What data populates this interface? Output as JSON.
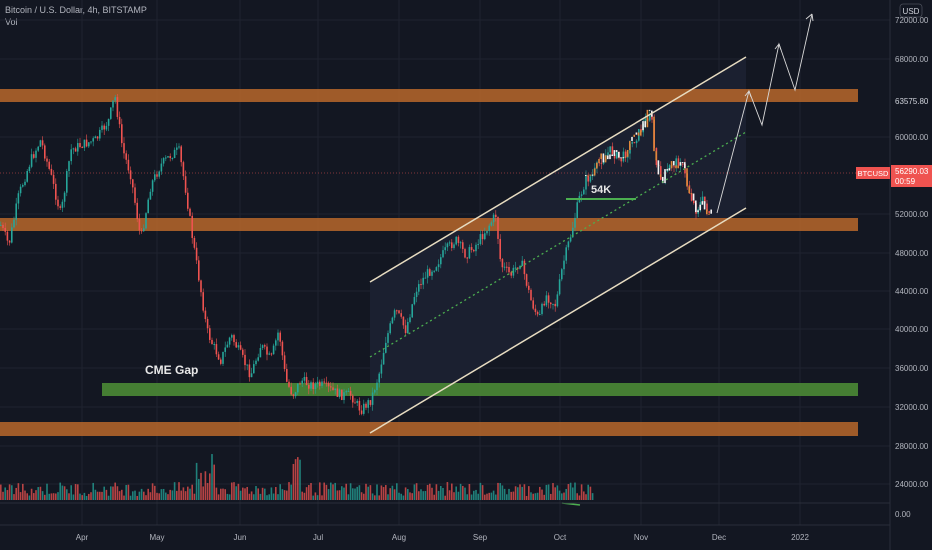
{
  "header": {
    "symbol_line": "Bitcoin / U.S. Dollar, 4h, BITSTAMP",
    "indicator": "Vol"
  },
  "currency_label": "USD",
  "colors": {
    "background": "#131722",
    "zone": "#b8672a",
    "cme_gap": "#4b8a35",
    "channel": "#e7dcc1",
    "midline": "#4caf50",
    "candle_up": "#26a69a",
    "candle_down": "#ef5350",
    "price_badge": "#ef5350"
  },
  "price_axis": {
    "ticks": [
      "72000.00",
      "68000.00",
      "63575.80",
      "60000.00",
      "56290.03",
      "52000.00",
      "48000.00",
      "44000.00",
      "40000.00",
      "36000.00",
      "32000.00",
      "28000.00",
      "24000.00",
      "0.00"
    ],
    "highlight": "63575.80"
  },
  "current_price": {
    "ticker": "BTCUSD",
    "price": "56290.03",
    "countdown": "00:59"
  },
  "time_axis": {
    "labels": [
      "Apr",
      "May",
      "Jun",
      "Jul",
      "Aug",
      "Sep",
      "Oct",
      "Nov",
      "Dec",
      "2022"
    ]
  },
  "annotations": {
    "cme_gap": "CME Gap",
    "level_label": "54K"
  }
}
